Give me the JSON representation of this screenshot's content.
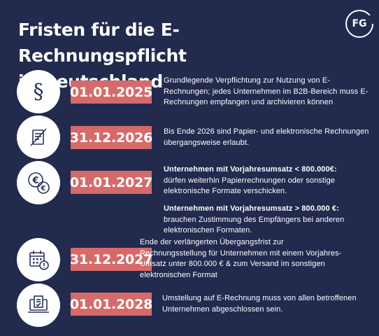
{
  "title_line1": "Fristen für die E-Rechnungspflicht",
  "title_line2": "in Deutschland",
  "logo": "FG",
  "colors": {
    "background": "#222a4e",
    "date_badge": "#d66a6a",
    "icon_bg": "#ffffff"
  },
  "entries": [
    {
      "icon": "paragraph-icon",
      "date": "01.01.2025",
      "lines": [
        "Grundlegende Verpflichtung zur Nutzung von E-",
        "Rechnungen; jedes Unternehmen im B2B-Bereich muss E-",
        "Rechnungen empfangen und archivieren können"
      ]
    },
    {
      "icon": "crossed-document-icon",
      "date": "31.12.2026",
      "lines": [
        "Bis Ende 2026 sind Papier- und elektronische Rechnungen",
        "übergangsweise erlaubt."
      ]
    },
    {
      "icon": "euro-coins-icon",
      "date": "01.01.2027",
      "block1_bold": "Unternehmen mit Vorjahresumsatz < 800.000€:",
      "block1_lines": [
        "dürfen weiterhin Papierrechnungen oder sonstige",
        "elektronische Formate verschicken."
      ],
      "block2_bold": "Unternehmen mit Vorjahresumsatz > 800.000 €:",
      "block2_lines": [
        "brauchen Zustimmung des Empfängers bei anderen",
        "elektronischen Formaten."
      ]
    },
    {
      "icon": "calendar-alert-icon",
      "date": "31.12.2027",
      "lines": [
        "Ende der verlängerten Übergangsfrist zur",
        "Rechnungsstellung für Unternehmen mit einem Vorjahres-",
        "Umsatz unter 800.000 € & zum Versand im sonstigen",
        "elektronischen Format"
      ]
    },
    {
      "icon": "laptop-document-icon",
      "date": "01.01.2028",
      "lines": [
        "Umstellung auf E-Rechnung muss von allen betroffenen",
        "Unternehmen abgeschlossen sein."
      ]
    }
  ]
}
